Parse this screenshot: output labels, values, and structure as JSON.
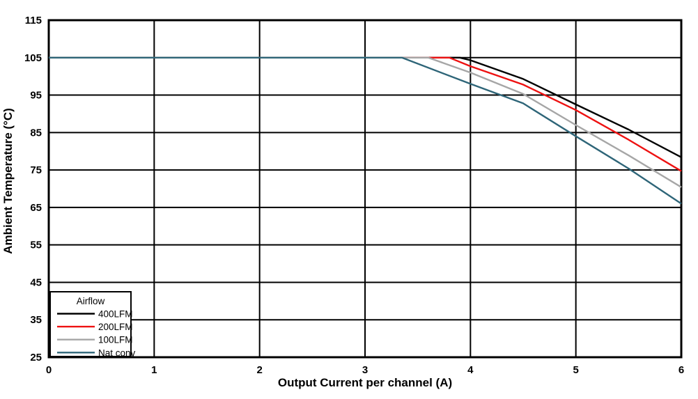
{
  "figure": {
    "background_color": "#ffffff",
    "frame_color": "#000000",
    "grid_color": "#000000"
  },
  "chart_data": {
    "type": "line",
    "title": "",
    "xlabel": "Output Current per channel (A)",
    "ylabel": "Ambient Temperature (°C)",
    "xlim": [
      0,
      6
    ],
    "ylim": [
      25,
      115
    ],
    "xticks": [
      0,
      1,
      2,
      3,
      4,
      5,
      6
    ],
    "yticks": [
      25,
      35,
      45,
      55,
      65,
      75,
      85,
      95,
      105,
      115
    ],
    "grid": true,
    "legend": {
      "title": "Airflow",
      "position": "bottom-left"
    },
    "series": [
      {
        "name": "400LFM",
        "color": "#000000",
        "points": [
          [
            0,
            105
          ],
          [
            3.9,
            105
          ],
          [
            4,
            104.3
          ],
          [
            4.5,
            99.3
          ],
          [
            5,
            92.5
          ],
          [
            5.5,
            85.8
          ],
          [
            6,
            78.4
          ]
        ]
      },
      {
        "name": "200LFM",
        "color": "#ee1111",
        "points": [
          [
            0,
            105
          ],
          [
            3.8,
            105
          ],
          [
            4,
            102.7
          ],
          [
            4.5,
            97.8
          ],
          [
            5,
            91
          ],
          [
            5.5,
            83.1
          ],
          [
            6,
            74.7
          ]
        ]
      },
      {
        "name": "100LFM",
        "color": "#a6a6a6",
        "points": [
          [
            0,
            105
          ],
          [
            3.6,
            105
          ],
          [
            4,
            101
          ],
          [
            4.5,
            95.3
          ],
          [
            5,
            87
          ],
          [
            5.5,
            78.9
          ],
          [
            6,
            70.4
          ]
        ]
      },
      {
        "name": "Nat conv",
        "color": "#2e6578",
        "points": [
          [
            0,
            105
          ],
          [
            3.35,
            105
          ],
          [
            4,
            98
          ],
          [
            4.5,
            92.8
          ],
          [
            5,
            84
          ],
          [
            5.5,
            75.4
          ],
          [
            6,
            66
          ]
        ]
      }
    ]
  }
}
